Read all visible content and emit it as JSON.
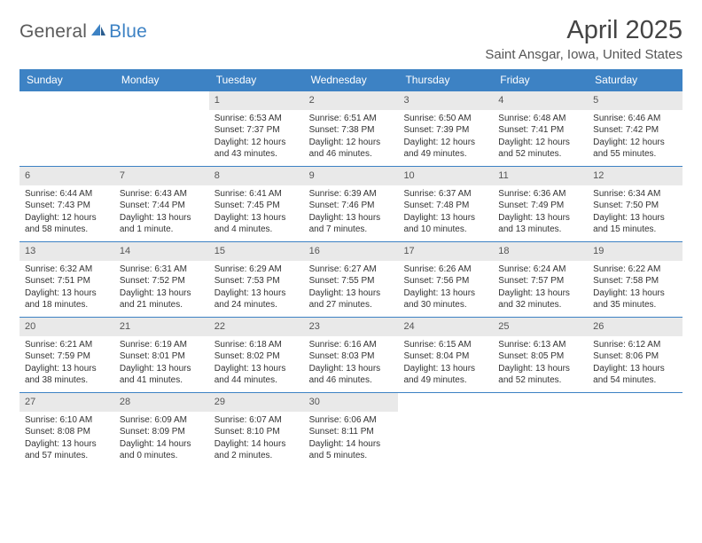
{
  "brand": {
    "part1": "General",
    "part2": "Blue"
  },
  "title": "April 2025",
  "location": "Saint Ansgar, Iowa, United States",
  "accent_color": "#3d82c4",
  "daynum_bg": "#e9e9e9",
  "day_labels": [
    "Sunday",
    "Monday",
    "Tuesday",
    "Wednesday",
    "Thursday",
    "Friday",
    "Saturday"
  ],
  "labels": {
    "sunrise": "Sunrise:",
    "sunset": "Sunset:",
    "daylight": "Daylight:"
  },
  "weeks": [
    [
      null,
      null,
      {
        "d": "1",
        "sr": "6:53 AM",
        "ss": "7:37 PM",
        "dl1": "12 hours",
        "dl2": "and 43 minutes."
      },
      {
        "d": "2",
        "sr": "6:51 AM",
        "ss": "7:38 PM",
        "dl1": "12 hours",
        "dl2": "and 46 minutes."
      },
      {
        "d": "3",
        "sr": "6:50 AM",
        "ss": "7:39 PM",
        "dl1": "12 hours",
        "dl2": "and 49 minutes."
      },
      {
        "d": "4",
        "sr": "6:48 AM",
        "ss": "7:41 PM",
        "dl1": "12 hours",
        "dl2": "and 52 minutes."
      },
      {
        "d": "5",
        "sr": "6:46 AM",
        "ss": "7:42 PM",
        "dl1": "12 hours",
        "dl2": "and 55 minutes."
      }
    ],
    [
      {
        "d": "6",
        "sr": "6:44 AM",
        "ss": "7:43 PM",
        "dl1": "12 hours",
        "dl2": "and 58 minutes."
      },
      {
        "d": "7",
        "sr": "6:43 AM",
        "ss": "7:44 PM",
        "dl1": "13 hours",
        "dl2": "and 1 minute."
      },
      {
        "d": "8",
        "sr": "6:41 AM",
        "ss": "7:45 PM",
        "dl1": "13 hours",
        "dl2": "and 4 minutes."
      },
      {
        "d": "9",
        "sr": "6:39 AM",
        "ss": "7:46 PM",
        "dl1": "13 hours",
        "dl2": "and 7 minutes."
      },
      {
        "d": "10",
        "sr": "6:37 AM",
        "ss": "7:48 PM",
        "dl1": "13 hours",
        "dl2": "and 10 minutes."
      },
      {
        "d": "11",
        "sr": "6:36 AM",
        "ss": "7:49 PM",
        "dl1": "13 hours",
        "dl2": "and 13 minutes."
      },
      {
        "d": "12",
        "sr": "6:34 AM",
        "ss": "7:50 PM",
        "dl1": "13 hours",
        "dl2": "and 15 minutes."
      }
    ],
    [
      {
        "d": "13",
        "sr": "6:32 AM",
        "ss": "7:51 PM",
        "dl1": "13 hours",
        "dl2": "and 18 minutes."
      },
      {
        "d": "14",
        "sr": "6:31 AM",
        "ss": "7:52 PM",
        "dl1": "13 hours",
        "dl2": "and 21 minutes."
      },
      {
        "d": "15",
        "sr": "6:29 AM",
        "ss": "7:53 PM",
        "dl1": "13 hours",
        "dl2": "and 24 minutes."
      },
      {
        "d": "16",
        "sr": "6:27 AM",
        "ss": "7:55 PM",
        "dl1": "13 hours",
        "dl2": "and 27 minutes."
      },
      {
        "d": "17",
        "sr": "6:26 AM",
        "ss": "7:56 PM",
        "dl1": "13 hours",
        "dl2": "and 30 minutes."
      },
      {
        "d": "18",
        "sr": "6:24 AM",
        "ss": "7:57 PM",
        "dl1": "13 hours",
        "dl2": "and 32 minutes."
      },
      {
        "d": "19",
        "sr": "6:22 AM",
        "ss": "7:58 PM",
        "dl1": "13 hours",
        "dl2": "and 35 minutes."
      }
    ],
    [
      {
        "d": "20",
        "sr": "6:21 AM",
        "ss": "7:59 PM",
        "dl1": "13 hours",
        "dl2": "and 38 minutes."
      },
      {
        "d": "21",
        "sr": "6:19 AM",
        "ss": "8:01 PM",
        "dl1": "13 hours",
        "dl2": "and 41 minutes."
      },
      {
        "d": "22",
        "sr": "6:18 AM",
        "ss": "8:02 PM",
        "dl1": "13 hours",
        "dl2": "and 44 minutes."
      },
      {
        "d": "23",
        "sr": "6:16 AM",
        "ss": "8:03 PM",
        "dl1": "13 hours",
        "dl2": "and 46 minutes."
      },
      {
        "d": "24",
        "sr": "6:15 AM",
        "ss": "8:04 PM",
        "dl1": "13 hours",
        "dl2": "and 49 minutes."
      },
      {
        "d": "25",
        "sr": "6:13 AM",
        "ss": "8:05 PM",
        "dl1": "13 hours",
        "dl2": "and 52 minutes."
      },
      {
        "d": "26",
        "sr": "6:12 AM",
        "ss": "8:06 PM",
        "dl1": "13 hours",
        "dl2": "and 54 minutes."
      }
    ],
    [
      {
        "d": "27",
        "sr": "6:10 AM",
        "ss": "8:08 PM",
        "dl1": "13 hours",
        "dl2": "and 57 minutes."
      },
      {
        "d": "28",
        "sr": "6:09 AM",
        "ss": "8:09 PM",
        "dl1": "14 hours",
        "dl2": "and 0 minutes."
      },
      {
        "d": "29",
        "sr": "6:07 AM",
        "ss": "8:10 PM",
        "dl1": "14 hours",
        "dl2": "and 2 minutes."
      },
      {
        "d": "30",
        "sr": "6:06 AM",
        "ss": "8:11 PM",
        "dl1": "14 hours",
        "dl2": "and 5 minutes."
      },
      null,
      null,
      null
    ]
  ]
}
